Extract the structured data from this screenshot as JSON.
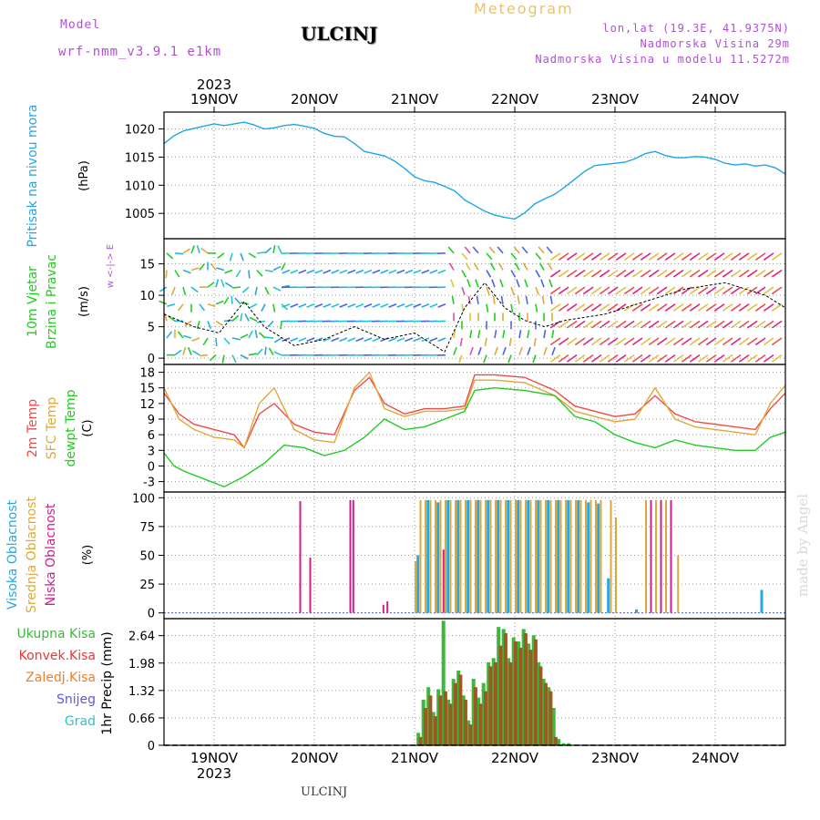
{
  "header": {
    "model_label": "Model",
    "model_name": "wrf-nmm_v3.9.1 e1km",
    "station": "ULCINJ",
    "meteogram": "Meteogram",
    "lonlat": "lon,lat (19.3E, 41.9375N)",
    "elevation": "Nadmorska Visina 29m",
    "model_elevation": "Nadmorska Visina u modelu 11.5272m"
  },
  "footer": {
    "station": "ULCINJ",
    "watermark": "made by Angel"
  },
  "colors": {
    "pressure": "#1fa5e8",
    "temp2m": "#ef4a4a",
    "sfc_temp": "#e0a83a",
    "dewpt": "#22cc22",
    "cloud_high": "#28a8e0",
    "cloud_mid": "#e0a83a",
    "cloud_low": "#cc1f8f",
    "precip_total": "#3db83d",
    "precip_conv": "#e23a3a",
    "precip_frozen": "#f07f2a",
    "snow": "#5a5ae6",
    "graupel": "#2ec6c6",
    "axis_label_blue": "#2aa4e0",
    "wind_label": "#22cc22"
  },
  "chart_data": [
    {
      "type": "line",
      "panel": "pressure",
      "ylabel": "Pritisak na nivou mora",
      "unit": "(hPa)",
      "yticks": [
        1005,
        1010,
        1015,
        1020
      ],
      "ylim": [
        1000.5,
        1023
      ],
      "top_year": "2023",
      "bottom_year": "2023",
      "x_tick_labels": [
        "19NOV",
        "20NOV",
        "21NOV",
        "22NOV",
        "23NOV",
        "24NOV"
      ],
      "x_tick_values": [
        0.5,
        1.5,
        2.5,
        3.5,
        4.5,
        5.5
      ],
      "xlim": [
        0,
        6.2
      ],
      "grid": true,
      "series": [
        {
          "x": [
            0,
            0.1,
            0.2,
            0.3,
            0.4,
            0.5,
            0.6,
            0.7,
            0.8,
            0.9,
            1.0,
            1.1,
            1.2,
            1.3,
            1.4,
            1.5,
            1.6,
            1.7,
            1.8,
            1.9,
            2.0,
            2.1,
            2.2,
            2.3,
            2.4,
            2.5,
            2.6,
            2.7,
            2.8,
            2.9,
            3.0,
            3.1,
            3.2,
            3.3,
            3.4,
            3.5,
            3.6,
            3.7,
            3.8,
            3.9,
            4.0,
            4.1,
            4.2,
            4.3,
            4.4,
            4.5,
            4.6,
            4.7,
            4.8,
            4.9,
            5.0,
            5.1,
            5.2,
            5.3,
            5.4,
            5.5,
            5.6,
            5.7,
            5.8,
            5.9,
            6.0,
            6.1,
            6.2
          ],
          "values": [
            1017.4,
            1018.8,
            1019.7,
            1020.1,
            1020.5,
            1020.9,
            1020.6,
            1020.9,
            1021.2,
            1020.7,
            1020.0,
            1020.2,
            1020.6,
            1020.8,
            1020.5,
            1020.1,
            1019.2,
            1018.7,
            1018.6,
            1017.4,
            1016.0,
            1015.6,
            1015.2,
            1014.3,
            1013.0,
            1011.5,
            1010.8,
            1010.5,
            1009.8,
            1009.0,
            1007.4,
            1006.4,
            1005.4,
            1004.7,
            1004.3,
            1004.0,
            1005.1,
            1006.7,
            1007.6,
            1008.4,
            1009.7,
            1011.1,
            1012.5,
            1013.5,
            1013.7,
            1013.9,
            1014.1,
            1014.7,
            1015.6,
            1016.0,
            1015.3,
            1014.9,
            1014.9,
            1015.1,
            1015.0,
            1014.6,
            1013.9,
            1013.6,
            1013.8,
            1013.4,
            1013.6,
            1013.1,
            1012.0
          ]
        }
      ]
    },
    {
      "type": "line",
      "panel": "wind",
      "ylabel_lines": [
        "10m Vjetar",
        "Brzina i Pravac"
      ],
      "unit": "(m/s)",
      "compass_glyph": "w <-|-> E",
      "yticks": [
        0,
        5,
        10,
        15
      ],
      "ylim": [
        -1,
        19
      ],
      "grid": true,
      "series": [
        {
          "x": [
            0,
            0.3,
            0.55,
            0.8,
            1.0,
            1.3,
            1.6,
            1.9,
            2.2,
            2.5,
            2.8,
            3.0,
            3.2,
            3.4,
            3.6,
            3.8,
            4.0,
            4.4,
            4.8,
            5.2,
            5.6,
            6.0,
            6.2
          ],
          "values": [
            7,
            5,
            4,
            9,
            5,
            2,
            3,
            5,
            3,
            4,
            1,
            8,
            12,
            8,
            6,
            5,
            6,
            7,
            9,
            11,
            12,
            10,
            8
          ]
        }
      ]
    },
    {
      "type": "line",
      "panel": "temperature",
      "ylabels": [
        "2m Temp",
        "SFC Temp",
        "dewpt Temp"
      ],
      "unit": "(C)",
      "yticks": [
        -3,
        0,
        3,
        6,
        9,
        12,
        15,
        18
      ],
      "ylim": [
        -5,
        19.5
      ],
      "grid": true,
      "series": [
        {
          "name": "2m Temp",
          "x": [
            0,
            0.15,
            0.3,
            0.5,
            0.7,
            0.8,
            0.95,
            1.1,
            1.3,
            1.5,
            1.7,
            1.9,
            2.05,
            2.2,
            2.4,
            2.6,
            2.8,
            3.0,
            3.1,
            3.3,
            3.6,
            3.9,
            4.1,
            4.3,
            4.5,
            4.7,
            4.9,
            5.1,
            5.3,
            5.5,
            5.7,
            5.9,
            6.05,
            6.2
          ],
          "values": [
            14,
            10,
            8,
            7,
            6,
            3.5,
            10,
            12,
            8,
            6.5,
            6,
            14.5,
            17,
            12,
            10,
            11,
            11,
            11.5,
            17.5,
            17.5,
            17,
            14.5,
            11.5,
            10.5,
            9.5,
            10,
            13.5,
            10,
            8.5,
            8,
            7.5,
            7,
            11,
            14
          ]
        },
        {
          "name": "SFC Temp",
          "x": [
            0,
            0.15,
            0.3,
            0.5,
            0.7,
            0.8,
            0.95,
            1.1,
            1.3,
            1.5,
            1.7,
            1.9,
            2.05,
            2.2,
            2.4,
            2.6,
            2.8,
            3.0,
            3.1,
            3.3,
            3.6,
            3.9,
            4.1,
            4.3,
            4.5,
            4.7,
            4.9,
            5.1,
            5.3,
            5.5,
            5.7,
            5.9,
            6.05,
            6.2
          ],
          "values": [
            15,
            9,
            7,
            5.5,
            5,
            3.5,
            12,
            15,
            7,
            5,
            4.5,
            15,
            18,
            11,
            9.5,
            10.5,
            10.5,
            11,
            16.5,
            16.5,
            16,
            13.5,
            10.5,
            9.5,
            8.5,
            9,
            15,
            9,
            7.5,
            7,
            6.5,
            6,
            12,
            15.5
          ]
        },
        {
          "name": "dewpt Temp",
          "x": [
            0,
            0.1,
            0.2,
            0.4,
            0.6,
            0.8,
            1.0,
            1.2,
            1.4,
            1.6,
            1.8,
            2.0,
            2.2,
            2.4,
            2.6,
            2.8,
            3.0,
            3.1,
            3.3,
            3.6,
            3.9,
            4.1,
            4.3,
            4.5,
            4.7,
            4.9,
            5.1,
            5.3,
            5.5,
            5.7,
            5.9,
            6.05,
            6.2
          ],
          "values": [
            2.5,
            0,
            -1,
            -2.5,
            -4,
            -2,
            0.5,
            4,
            3.5,
            2,
            3,
            5.5,
            9,
            7,
            7.5,
            9,
            10.5,
            14.5,
            15,
            14.5,
            13.5,
            9.5,
            8.5,
            6,
            4.5,
            3.5,
            5,
            4,
            3.5,
            3,
            3,
            5.5,
            6.5
          ]
        }
      ]
    },
    {
      "type": "bar",
      "panel": "clouds",
      "ylabels": [
        "Visoka Oblacnost",
        "Srednja Oblacnost",
        "Niska Oblacnost"
      ],
      "unit": "(%)",
      "yticks": [
        0,
        25,
        50,
        75,
        100
      ],
      "ylim": [
        -5,
        105
      ],
      "grid": true,
      "series": [
        {
          "name": "Niska Oblacnost",
          "x": [
            1.35,
            1.45,
            1.85,
            1.88,
            2.18,
            2.22,
            2.7,
            2.78,
            2.95,
            3.05,
            3.15,
            3.25,
            3.35,
            3.5,
            3.6,
            3.7,
            4.85,
            4.95,
            5.05
          ],
          "values": [
            97,
            48,
            98,
            98,
            7,
            10,
            90,
            55,
            98,
            98,
            98,
            98,
            98,
            98,
            98,
            98,
            98,
            98,
            98
          ]
        },
        {
          "name": "Srednja Oblacnost",
          "x": [
            2.5,
            2.55,
            2.6,
            2.65,
            2.7,
            2.75,
            2.8,
            2.85,
            2.9,
            2.95,
            3.0,
            3.05,
            3.1,
            3.15,
            3.2,
            3.25,
            3.3,
            3.35,
            3.4,
            3.45,
            3.5,
            3.55,
            3.6,
            3.65,
            3.7,
            3.75,
            3.8,
            3.85,
            3.9,
            3.95,
            4.0,
            4.05,
            4.1,
            4.15,
            4.2,
            4.25,
            4.3,
            4.35,
            4.45,
            4.5,
            4.8,
            4.9,
            5.0,
            5.12
          ],
          "values": [
            45,
            98,
            98,
            98,
            98,
            98,
            98,
            98,
            98,
            98,
            98,
            98,
            98,
            98,
            98,
            98,
            98,
            98,
            98,
            98,
            98,
            98,
            98,
            98,
            98,
            98,
            98,
            98,
            98,
            98,
            98,
            98,
            98,
            98,
            98,
            98,
            98,
            98,
            98,
            83,
            98,
            98,
            98,
            50
          ]
        },
        {
          "name": "Visoka Oblacnost",
          "x": [
            2.52,
            2.62,
            2.72,
            2.82,
            2.92,
            3.02,
            3.12,
            3.22,
            3.32,
            3.42,
            3.52,
            3.62,
            3.72,
            3.82,
            3.92,
            4.02,
            4.12,
            4.22,
            4.32,
            4.42,
            4.7,
            5.95
          ],
          "values": [
            50,
            98,
            96,
            98,
            98,
            98,
            98,
            98,
            98,
            98,
            98,
            98,
            98,
            98,
            98,
            98,
            98,
            96,
            95,
            30,
            3,
            20
          ]
        }
      ]
    },
    {
      "type": "bar",
      "panel": "precip",
      "ylabel": "1hr Precip (mm)",
      "legend_labels": [
        "Ukupna Kisa",
        "Konvek.Kisa",
        "Zaledj.Kisa",
        "Snijeg",
        "Grad"
      ],
      "yticks": [
        0,
        0.66,
        1.32,
        1.98,
        2.64
      ],
      "ylim": [
        0,
        3.05
      ],
      "grid": true,
      "series": [
        {
          "name": "Ukupna Kisa",
          "x": [
            2.52,
            2.57,
            2.62,
            2.67,
            2.72,
            2.77,
            2.82,
            2.87,
            2.92,
            2.97,
            3.02,
            3.07,
            3.12,
            3.17,
            3.22,
            3.27,
            3.32,
            3.37,
            3.42,
            3.47,
            3.52,
            3.57,
            3.62,
            3.67,
            3.72,
            3.77,
            3.82,
            3.87,
            3.92,
            3.97,
            4.02
          ],
          "values": [
            0.3,
            1.1,
            1.4,
            0.8,
            1.35,
            3.0,
            1.1,
            1.6,
            1.8,
            1.2,
            0.6,
            1.6,
            1.15,
            1.5,
            2.0,
            2.1,
            2.85,
            2.8,
            2.1,
            2.6,
            2.5,
            2.8,
            2.45,
            2.65,
            2.0,
            1.6,
            1.4,
            0.9,
            0.15,
            0.05,
            0.05
          ]
        },
        {
          "name": "Konvek.Kisa",
          "x": [
            2.54,
            2.59,
            2.64,
            2.69,
            2.74,
            2.79,
            2.84,
            2.89,
            2.94,
            2.99,
            3.04,
            3.09,
            3.14,
            3.19,
            3.24,
            3.29,
            3.34,
            3.39,
            3.44,
            3.49,
            3.54,
            3.59,
            3.64,
            3.69,
            3.74,
            3.79,
            3.84,
            3.89
          ],
          "values": [
            0.2,
            0.9,
            1.2,
            0.7,
            1.2,
            1.3,
            1.0,
            1.5,
            1.7,
            1.1,
            0.5,
            1.4,
            1.0,
            1.3,
            1.9,
            2.0,
            2.4,
            2.7,
            2.0,
            2.5,
            2.35,
            2.7,
            2.3,
            2.55,
            1.9,
            1.5,
            1.3,
            0.2
          ]
        }
      ]
    },
    {
      "type": "table",
      "panel": "x-axis",
      "x_tick_labels": [
        "19NOV",
        "20NOV",
        "21NOV",
        "22NOV",
        "23NOV",
        "24NOV"
      ]
    }
  ]
}
